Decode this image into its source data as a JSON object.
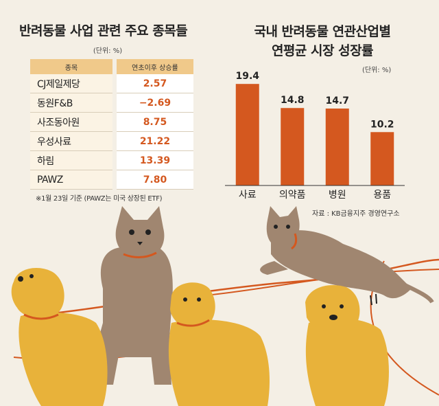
{
  "table": {
    "title": "반려동물 사업 관련 주요 종목들",
    "unit": "(단위: %)",
    "headers": [
      "종목",
      "연초이후 상승률"
    ],
    "rows": [
      {
        "name": "CJ제일제당",
        "value": "2.57"
      },
      {
        "name": "동원F&B",
        "value": "−2.69"
      },
      {
        "name": "사조동아원",
        "value": "8.75"
      },
      {
        "name": "우성사료",
        "value": "21.22"
      },
      {
        "name": "하림",
        "value": "13.39"
      },
      {
        "name": "PAWZ",
        "value": "7.80"
      }
    ],
    "note": "※1월 23일 기준 (PAWZ는 미국 상장된 ETF)"
  },
  "chart_data": {
    "type": "bar",
    "title": "국내 반려동물 연관산업별\n연평균 시장 성장률",
    "title_lines": [
      "국내 반려동물 연관산업별",
      "연평균 시장 성장률"
    ],
    "unit": "(단위: %)",
    "categories": [
      "사료",
      "의약품",
      "병원",
      "용품"
    ],
    "values": [
      19.4,
      14.8,
      14.7,
      10.2
    ],
    "value_labels": [
      "19.4",
      "14.8",
      "14.7",
      "10.2"
    ],
    "ylim": [
      0,
      21
    ],
    "grid": false,
    "bar_color": "#d4581f",
    "source": "자료 : KB금융지주 경영연구소"
  },
  "colors": {
    "background": "#f4efe5",
    "accent": "#d4581f",
    "dog": "#e8b23a",
    "cat": "#a08670",
    "collar": "#d4581f"
  }
}
